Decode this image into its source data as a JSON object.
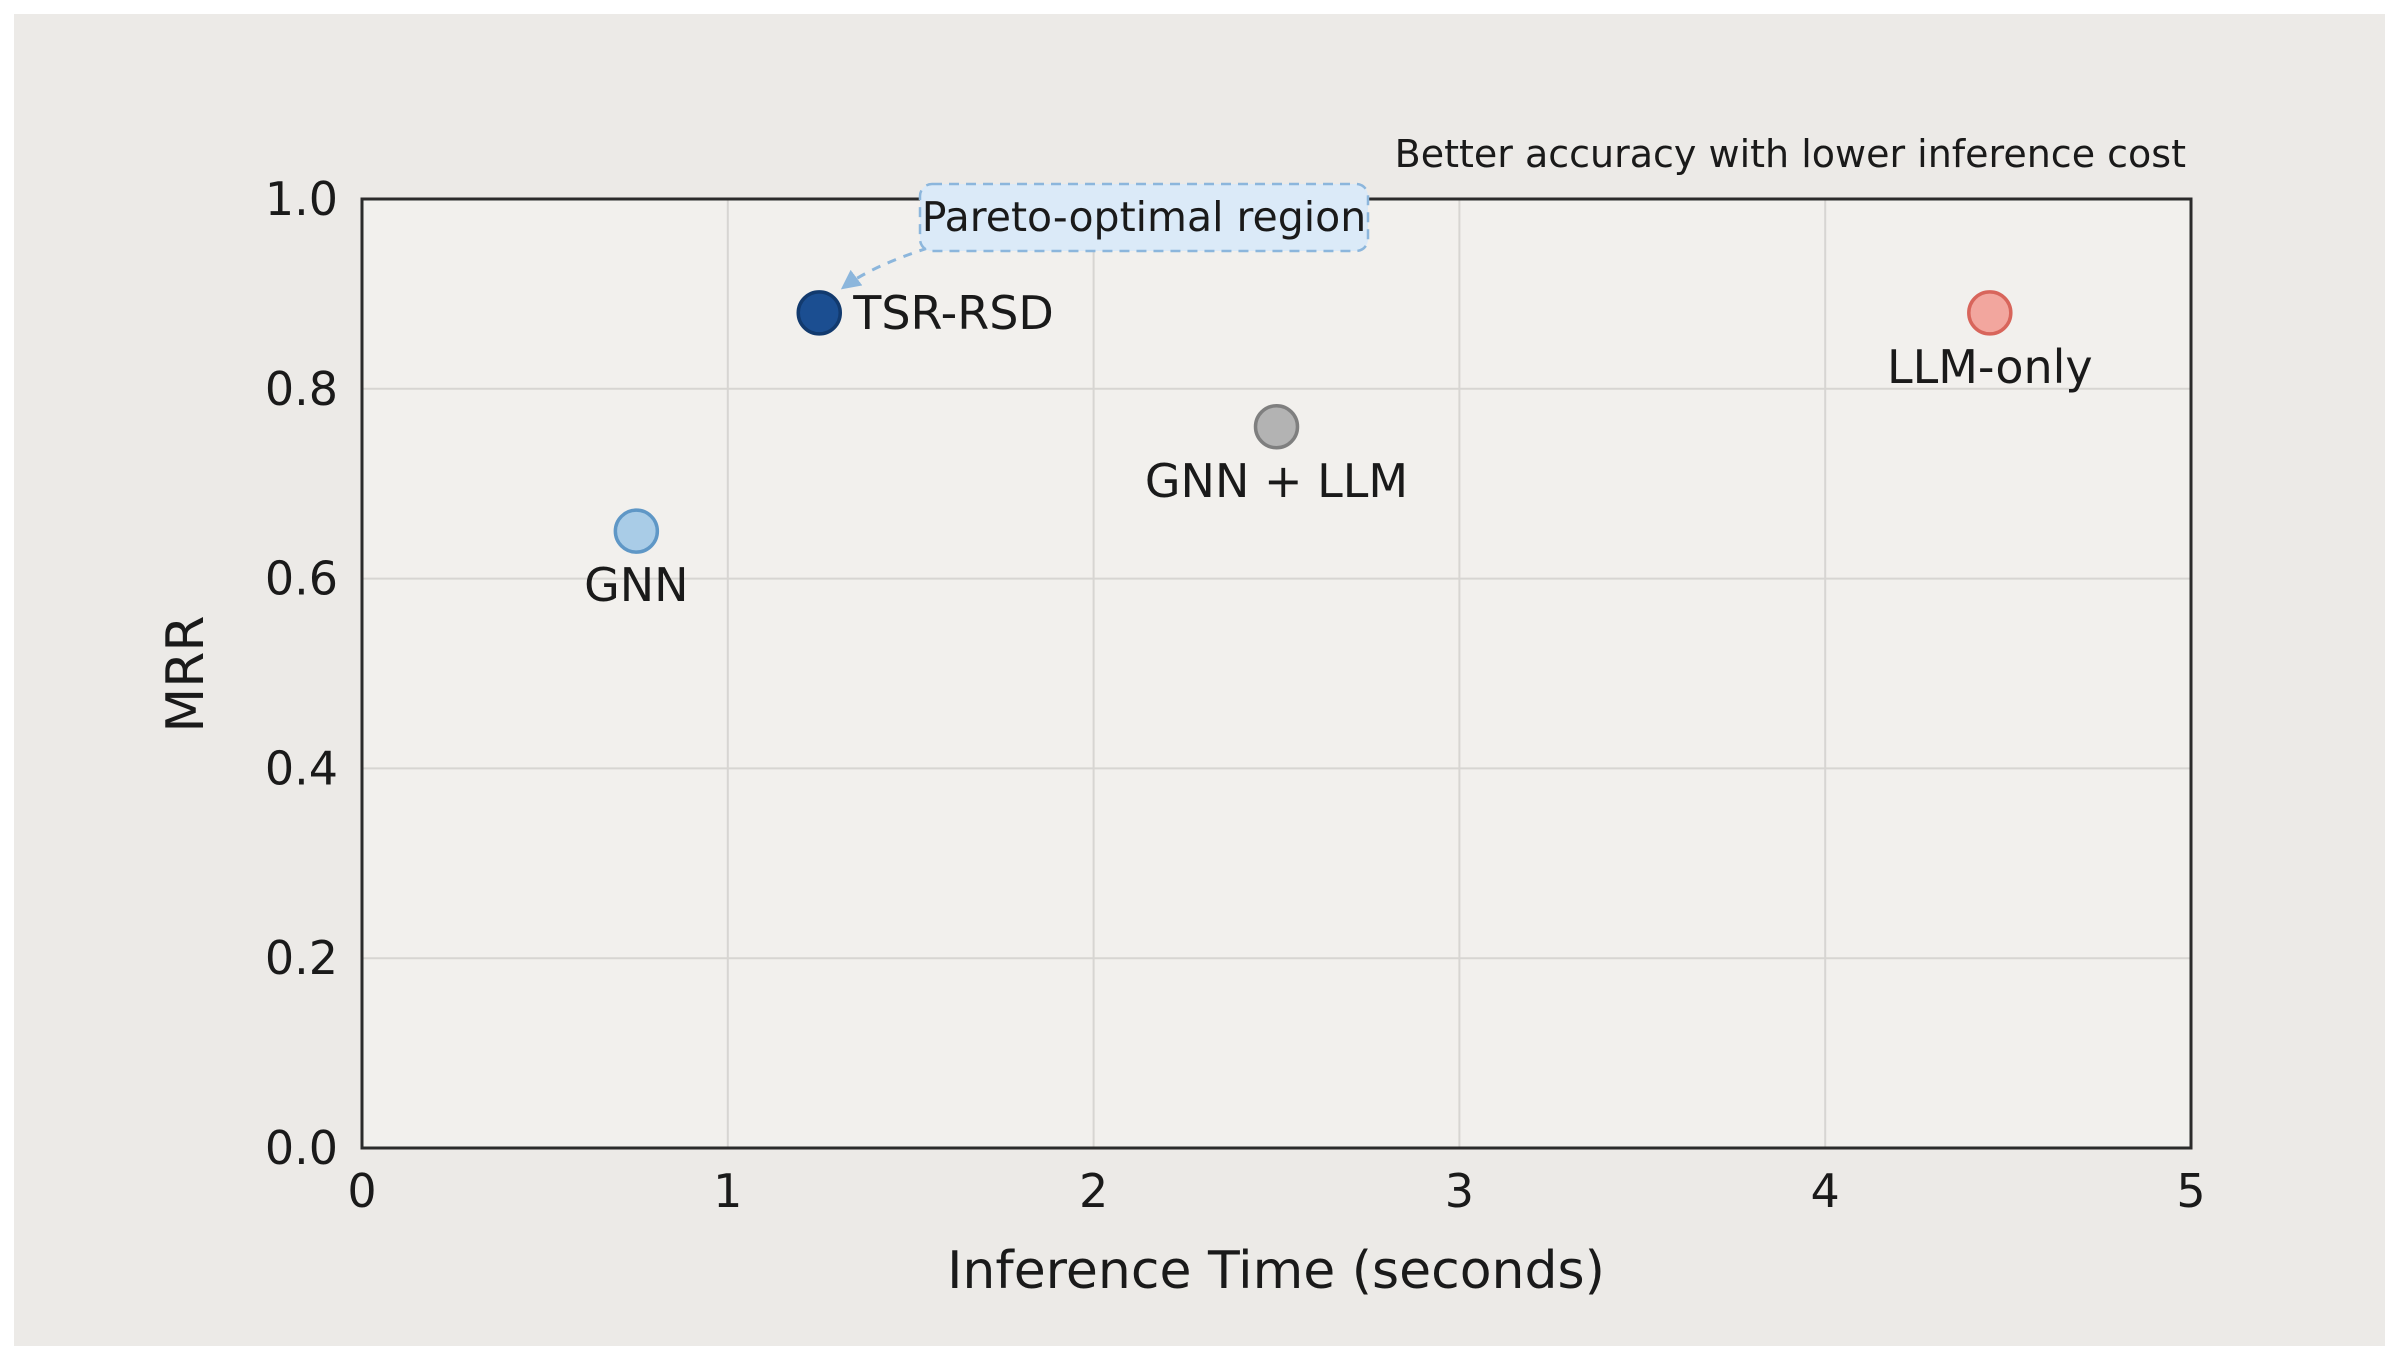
{
  "chart_data": {
    "type": "scatter",
    "title": "",
    "xlabel": "Inference Time (seconds)",
    "ylabel": "MRR",
    "xlim": [
      0,
      5
    ],
    "ylim": [
      0.0,
      1.0
    ],
    "grid": true,
    "legend": "none",
    "x_ticks": [
      {
        "value": 0,
        "label": "0"
      },
      {
        "value": 1,
        "label": "1"
      },
      {
        "value": 2,
        "label": "2"
      },
      {
        "value": 3,
        "label": "3"
      },
      {
        "value": 4,
        "label": "4"
      },
      {
        "value": 5,
        "label": "5"
      }
    ],
    "y_ticks": [
      {
        "value": 0.0,
        "label": "0.0"
      },
      {
        "value": 0.2,
        "label": "0.2"
      },
      {
        "value": 0.4,
        "label": "0.4"
      },
      {
        "value": 0.6,
        "label": "0.6"
      },
      {
        "value": 0.8,
        "label": "0.8"
      },
      {
        "value": 1.0,
        "label": "1.0"
      }
    ],
    "points": [
      {
        "label": "GNN",
        "x": 0.75,
        "y": 0.65,
        "fill": "#A9CCE7",
        "edge": "#5F97C6",
        "label_position": "below"
      },
      {
        "label": "TSR-RSD",
        "x": 1.25,
        "y": 0.88,
        "fill": "#1B4E91",
        "edge": "#123A6E",
        "label_position": "right"
      },
      {
        "label": "GNN + LLM",
        "x": 2.5,
        "y": 0.76,
        "fill": "#B3B3B3",
        "edge": "#7F7F7F",
        "label_position": "below"
      },
      {
        "label": "LLM-only",
        "x": 4.45,
        "y": 0.88,
        "fill": "#F2A69E",
        "edge": "#D8655B",
        "label_position": "below"
      }
    ],
    "annotations": {
      "top_note": "Better accuracy with lower inference cost",
      "pareto_label": "Pareto-optimal region"
    },
    "style": {
      "canvas_background": "#ECEAE7",
      "plot_background": "#F2F0ED",
      "grid_color": "#D7D5D2",
      "spine_color": "#2B2B2B",
      "text_color": "#1A1A1A",
      "pareto_box_fill": "#DBEAF8",
      "pareto_box_border": "#8CB6DC",
      "arrow_color": "#8CB6DC"
    }
  }
}
